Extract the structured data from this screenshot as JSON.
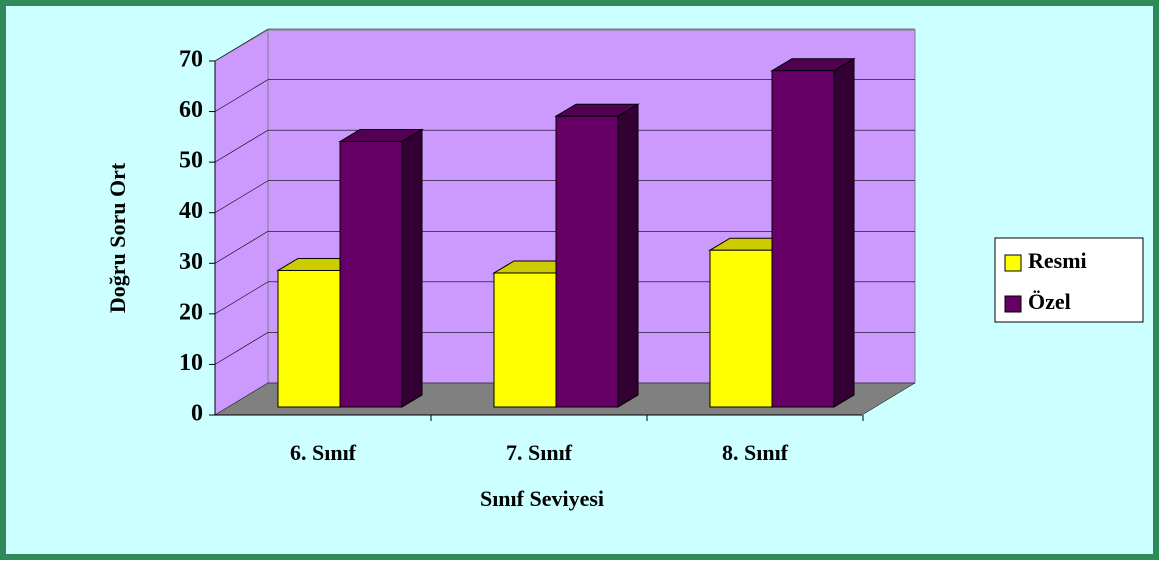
{
  "chart_data": {
    "type": "bar3d",
    "y_label": "Doğru Soru Ort",
    "x_label": "Sınıf Seviyesi",
    "categories": [
      "6. Sınıf",
      "7. Sınıf",
      "8. Sınıf"
    ],
    "series": [
      {
        "name": "Resmi",
        "color": "#ffff00",
        "values": [
          27,
          26.5,
          31
        ]
      },
      {
        "name": "Özel",
        "color": "#660066",
        "values": [
          52.5,
          57.5,
          66.5
        ]
      }
    ],
    "ylim": [
      0,
      70
    ],
    "yticks": [
      0,
      10,
      20,
      30,
      40,
      50,
      60,
      70
    ],
    "grid": true,
    "legend": "right"
  }
}
